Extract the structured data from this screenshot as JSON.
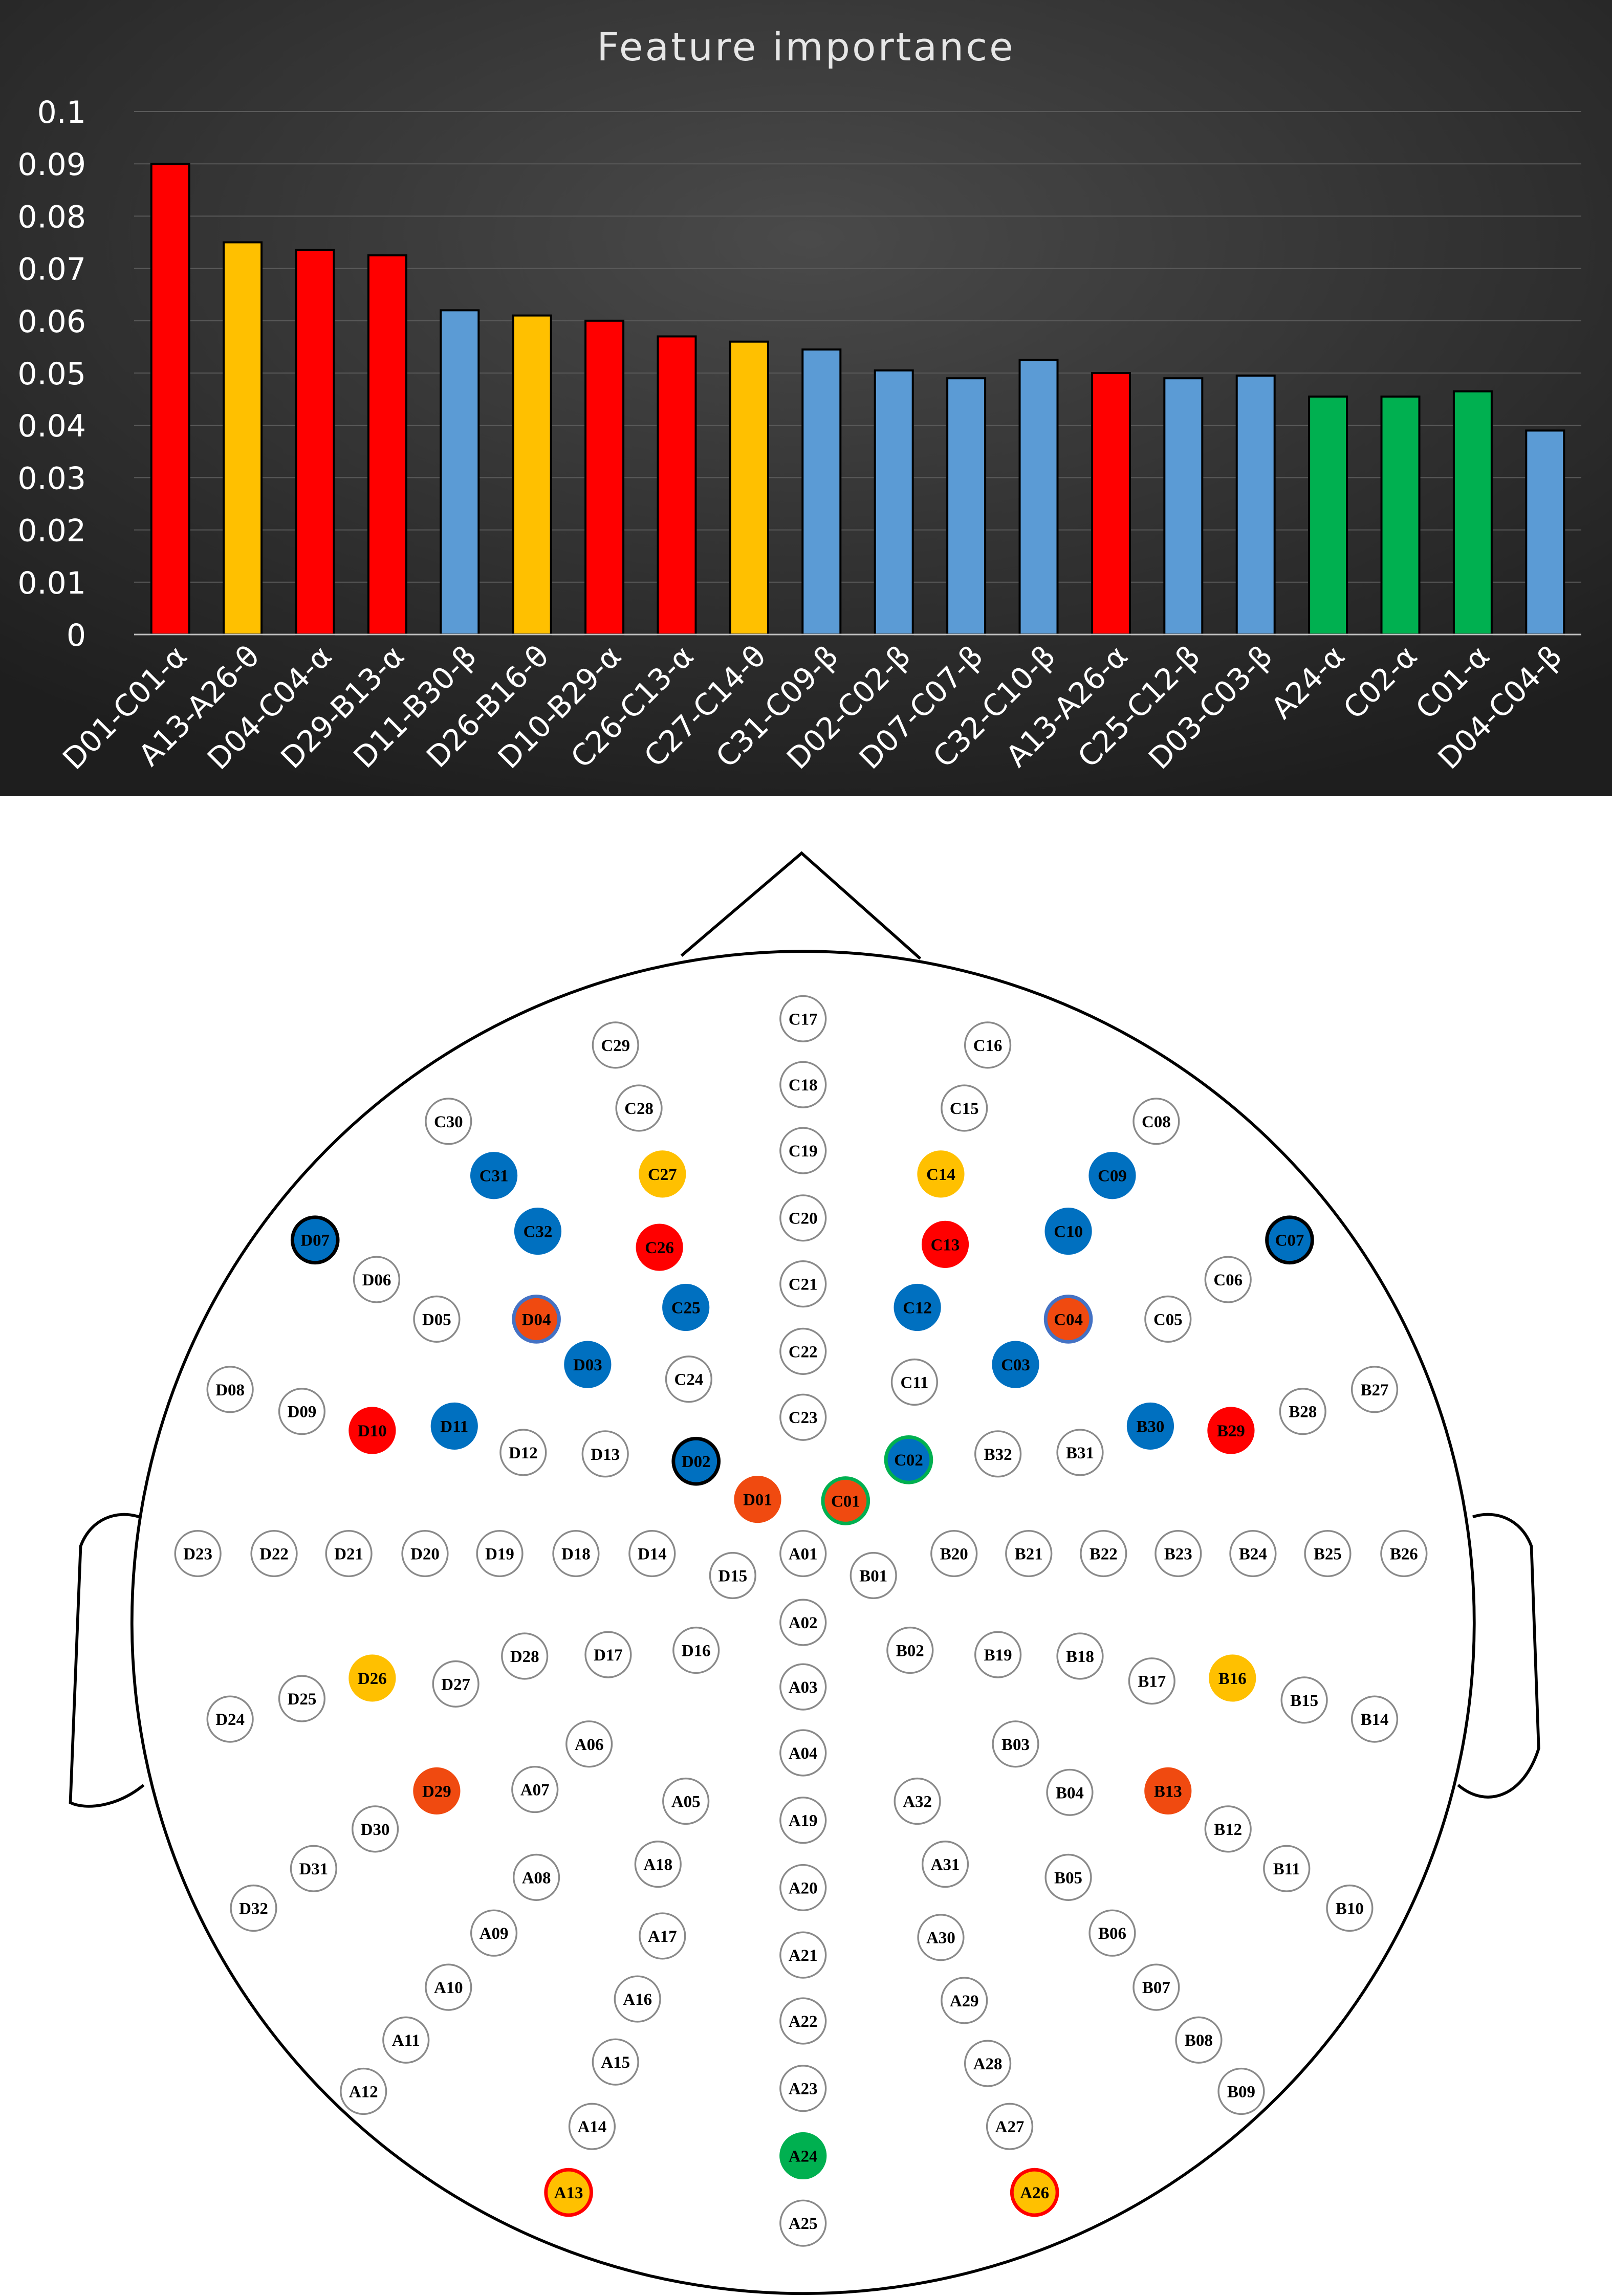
{
  "chart_data": {
    "type": "bar",
    "title": "Feature importance",
    "xlabel": "",
    "ylabel": "",
    "ylim": [
      0,
      0.1
    ],
    "yticks": [
      "0",
      "0.01",
      "0.02",
      "0.03",
      "0.04",
      "0.05",
      "0.06",
      "0.07",
      "0.08",
      "0.09",
      "0.1"
    ],
    "grid": true,
    "legend": "none",
    "categories": [
      "D01-C01-α",
      "A13-A26-θ",
      "D04-C04-α",
      "D29-B13-α",
      "D11-B30-β",
      "D26-B16-θ",
      "D10-B29-α",
      "C26-C13-α",
      "C27-C14-θ",
      "C31-C09-β",
      "D02-C02-β",
      "D07-C07-β",
      "C32-C10-β",
      "A13-A26-α",
      "C25-C12-β",
      "D03-C03-β",
      "A24-α",
      "C02-α",
      "C01-α",
      "D04-C04-β"
    ],
    "values": [
      0.09,
      0.075,
      0.0735,
      0.0725,
      0.062,
      0.061,
      0.06,
      0.057,
      0.056,
      0.0545,
      0.0505,
      0.049,
      0.0525,
      0.05,
      0.049,
      0.0495,
      0.0455,
      0.0455,
      0.0465,
      0.039
    ],
    "bar_colors": [
      "#ff0000",
      "#ffc000",
      "#ff0000",
      "#ff0000",
      "#5b9bd5",
      "#ffc000",
      "#ff0000",
      "#ff0000",
      "#ffc000",
      "#5b9bd5",
      "#5b9bd5",
      "#5b9bd5",
      "#5b9bd5",
      "#ff0000",
      "#5b9bd5",
      "#5b9bd5",
      "#00b050",
      "#00b050",
      "#00b050",
      "#5b9bd5"
    ],
    "background": [
      "#1e1e1e",
      "#4a4a4a"
    ]
  },
  "electrode_colors": {
    "white": "#ffffff",
    "red": "#ff0000",
    "orange_red": "#f04a10",
    "orange": "#ffc000",
    "blue": "#0070c0",
    "green": "#00b050"
  },
  "electrodes": [
    {
      "id": "C17",
      "x": 548,
      "y": 695,
      "c": "white"
    },
    {
      "id": "C18",
      "x": 548,
      "y": 740,
      "c": "white"
    },
    {
      "id": "C19",
      "x": 548,
      "y": 785,
      "c": "white"
    },
    {
      "id": "C20",
      "x": 548,
      "y": 831,
      "c": "white"
    },
    {
      "id": "C21",
      "x": 548,
      "y": 876,
      "c": "white"
    },
    {
      "id": "C22",
      "x": 548,
      "y": 922,
      "c": "white"
    },
    {
      "id": "C23",
      "x": 548,
      "y": 967,
      "c": "white"
    },
    {
      "id": "C29",
      "x": 420,
      "y": 713,
      "c": "white"
    },
    {
      "id": "C16",
      "x": 674,
      "y": 713,
      "c": "white"
    },
    {
      "id": "C30",
      "x": 306,
      "y": 765,
      "c": "white"
    },
    {
      "id": "C28",
      "x": 436,
      "y": 756,
      "c": "white"
    },
    {
      "id": "C15",
      "x": 658,
      "y": 756,
      "c": "white"
    },
    {
      "id": "C08",
      "x": 789,
      "y": 765,
      "c": "white"
    },
    {
      "id": "C31",
      "x": 337,
      "y": 802,
      "c": "blue"
    },
    {
      "id": "C27",
      "x": 452,
      "y": 801,
      "c": "orange"
    },
    {
      "id": "C14",
      "x": 642,
      "y": 801,
      "c": "orange"
    },
    {
      "id": "C09",
      "x": 759,
      "y": 802,
      "c": "blue"
    },
    {
      "id": "D07",
      "x": 215,
      "y": 846,
      "c": "blue"
    },
    {
      "id": "C32",
      "x": 367,
      "y": 840,
      "c": "blue"
    },
    {
      "id": "C26",
      "x": 450,
      "y": 851,
      "c": "red"
    },
    {
      "id": "C13",
      "x": 645,
      "y": 849,
      "c": "red"
    },
    {
      "id": "C10",
      "x": 729,
      "y": 840,
      "c": "blue"
    },
    {
      "id": "C07",
      "x": 880,
      "y": 846,
      "c": "blue"
    },
    {
      "id": "D06",
      "x": 257,
      "y": 873,
      "c": "white"
    },
    {
      "id": "C06",
      "x": 838,
      "y": 873,
      "c": "white"
    },
    {
      "id": "D05",
      "x": 298,
      "y": 900,
      "c": "white"
    },
    {
      "id": "D04",
      "x": 366,
      "y": 900,
      "c": "orange_red"
    },
    {
      "id": "C25",
      "x": 468,
      "y": 892,
      "c": "blue"
    },
    {
      "id": "C12",
      "x": 626,
      "y": 892,
      "c": "blue"
    },
    {
      "id": "C04",
      "x": 729,
      "y": 900,
      "c": "orange_red"
    },
    {
      "id": "C05",
      "x": 797,
      "y": 900,
      "c": "white"
    },
    {
      "id": "D03",
      "x": 401,
      "y": 931,
      "c": "blue"
    },
    {
      "id": "C24",
      "x": 470,
      "y": 941,
      "c": "white"
    },
    {
      "id": "C11",
      "x": 624,
      "y": 943,
      "c": "white"
    },
    {
      "id": "C03",
      "x": 693,
      "y": 931,
      "c": "blue"
    },
    {
      "id": "D08",
      "x": 157,
      "y": 948,
      "c": "white"
    },
    {
      "id": "B27",
      "x": 938,
      "y": 948,
      "c": "white"
    },
    {
      "id": "D09",
      "x": 206,
      "y": 963,
      "c": "white"
    },
    {
      "id": "B28",
      "x": 889,
      "y": 963,
      "c": "white"
    },
    {
      "id": "D10",
      "x": 254,
      "y": 976,
      "c": "red"
    },
    {
      "id": "D11",
      "x": 310,
      "y": 973,
      "c": "blue"
    },
    {
      "id": "B30",
      "x": 785,
      "y": 973,
      "c": "blue"
    },
    {
      "id": "B29",
      "x": 840,
      "y": 976,
      "c": "red"
    },
    {
      "id": "D12",
      "x": 357,
      "y": 991,
      "c": "white"
    },
    {
      "id": "D13",
      "x": 413,
      "y": 992,
      "c": "white"
    },
    {
      "id": "D02",
      "x": 475,
      "y": 997,
      "c": "blue"
    },
    {
      "id": "C02",
      "x": 620,
      "y": 996,
      "c": "blue"
    },
    {
      "id": "B32",
      "x": 681,
      "y": 992,
      "c": "white"
    },
    {
      "id": "B31",
      "x": 737,
      "y": 991,
      "c": "white"
    },
    {
      "id": "D01",
      "x": 517,
      "y": 1023,
      "c": "orange_red"
    },
    {
      "id": "C01",
      "x": 577,
      "y": 1024,
      "c": "orange_red"
    },
    {
      "id": "D23",
      "x": 135,
      "y": 1060,
      "c": "white"
    },
    {
      "id": "D22",
      "x": 187,
      "y": 1060,
      "c": "white"
    },
    {
      "id": "D21",
      "x": 238,
      "y": 1060,
      "c": "white"
    },
    {
      "id": "D20",
      "x": 290,
      "y": 1060,
      "c": "white"
    },
    {
      "id": "D19",
      "x": 341,
      "y": 1060,
      "c": "white"
    },
    {
      "id": "D18",
      "x": 393,
      "y": 1060,
      "c": "white"
    },
    {
      "id": "D14",
      "x": 445,
      "y": 1060,
      "c": "white"
    },
    {
      "id": "D15",
      "x": 500,
      "y": 1075,
      "c": "white"
    },
    {
      "id": "A01",
      "x": 548,
      "y": 1060,
      "c": "white"
    },
    {
      "id": "B01",
      "x": 596,
      "y": 1075,
      "c": "white"
    },
    {
      "id": "B20",
      "x": 651,
      "y": 1060,
      "c": "white"
    },
    {
      "id": "B21",
      "x": 702,
      "y": 1060,
      "c": "white"
    },
    {
      "id": "B22",
      "x": 753,
      "y": 1060,
      "c": "white"
    },
    {
      "id": "B23",
      "x": 804,
      "y": 1060,
      "c": "white"
    },
    {
      "id": "B24",
      "x": 855,
      "y": 1060,
      "c": "white"
    },
    {
      "id": "B25",
      "x": 906,
      "y": 1060,
      "c": "white"
    },
    {
      "id": "B26",
      "x": 958,
      "y": 1060,
      "c": "white"
    },
    {
      "id": "A02",
      "x": 548,
      "y": 1107,
      "c": "white"
    },
    {
      "id": "D16",
      "x": 475,
      "y": 1126,
      "c": "white"
    },
    {
      "id": "B02",
      "x": 621,
      "y": 1126,
      "c": "white"
    },
    {
      "id": "D28",
      "x": 358,
      "y": 1130,
      "c": "white"
    },
    {
      "id": "D17",
      "x": 415,
      "y": 1129,
      "c": "white"
    },
    {
      "id": "B19",
      "x": 681,
      "y": 1129,
      "c": "white"
    },
    {
      "id": "B18",
      "x": 737,
      "y": 1130,
      "c": "white"
    },
    {
      "id": "D26",
      "x": 254,
      "y": 1145,
      "c": "orange"
    },
    {
      "id": "B16",
      "x": 841,
      "y": 1145,
      "c": "orange"
    },
    {
      "id": "D27",
      "x": 311,
      "y": 1149,
      "c": "white"
    },
    {
      "id": "B17",
      "x": 786,
      "y": 1147,
      "c": "white"
    },
    {
      "id": "A03",
      "x": 548,
      "y": 1151,
      "c": "white"
    },
    {
      "id": "D25",
      "x": 206,
      "y": 1159,
      "c": "white"
    },
    {
      "id": "B15",
      "x": 890,
      "y": 1160,
      "c": "white"
    },
    {
      "id": "D24",
      "x": 157,
      "y": 1173,
      "c": "white"
    },
    {
      "id": "B14",
      "x": 938,
      "y": 1173,
      "c": "white"
    },
    {
      "id": "A06",
      "x": 402,
      "y": 1190,
      "c": "white"
    },
    {
      "id": "B03",
      "x": 693,
      "y": 1190,
      "c": "white"
    },
    {
      "id": "A04",
      "x": 548,
      "y": 1196,
      "c": "white"
    },
    {
      "id": "D29",
      "x": 298,
      "y": 1222,
      "c": "orange_red"
    },
    {
      "id": "A07",
      "x": 365,
      "y": 1221,
      "c": "white"
    },
    {
      "id": "B04",
      "x": 730,
      "y": 1223,
      "c": "white"
    },
    {
      "id": "B13",
      "x": 797,
      "y": 1222,
      "c": "orange_red"
    },
    {
      "id": "A05",
      "x": 468,
      "y": 1229,
      "c": "white"
    },
    {
      "id": "A32",
      "x": 626,
      "y": 1229,
      "c": "white"
    },
    {
      "id": "A19",
      "x": 548,
      "y": 1242,
      "c": "white"
    },
    {
      "id": "D30",
      "x": 256,
      "y": 1248,
      "c": "white"
    },
    {
      "id": "B12",
      "x": 838,
      "y": 1248,
      "c": "white"
    },
    {
      "id": "D31",
      "x": 214,
      "y": 1275,
      "c": "white"
    },
    {
      "id": "B11",
      "x": 878,
      "y": 1275,
      "c": "white"
    },
    {
      "id": "A18",
      "x": 449,
      "y": 1272,
      "c": "white"
    },
    {
      "id": "A31",
      "x": 645,
      "y": 1272,
      "c": "white"
    },
    {
      "id": "A08",
      "x": 366,
      "y": 1281,
      "c": "white"
    },
    {
      "id": "B05",
      "x": 729,
      "y": 1281,
      "c": "white"
    },
    {
      "id": "A20",
      "x": 548,
      "y": 1288,
      "c": "white"
    },
    {
      "id": "D32",
      "x": 173,
      "y": 1302,
      "c": "white"
    },
    {
      "id": "B10",
      "x": 921,
      "y": 1302,
      "c": "white"
    },
    {
      "id": "A09",
      "x": 337,
      "y": 1319,
      "c": "white"
    },
    {
      "id": "B06",
      "x": 759,
      "y": 1319,
      "c": "white"
    },
    {
      "id": "A17",
      "x": 452,
      "y": 1321,
      "c": "white"
    },
    {
      "id": "A30",
      "x": 642,
      "y": 1322,
      "c": "white"
    },
    {
      "id": "A21",
      "x": 548,
      "y": 1334,
      "c": "white"
    },
    {
      "id": "A10",
      "x": 306,
      "y": 1356,
      "c": "white"
    },
    {
      "id": "B07",
      "x": 789,
      "y": 1356,
      "c": "white"
    },
    {
      "id": "A16",
      "x": 435,
      "y": 1364,
      "c": "white"
    },
    {
      "id": "A29",
      "x": 658,
      "y": 1365,
      "c": "white"
    },
    {
      "id": "A22",
      "x": 548,
      "y": 1379,
      "c": "white"
    },
    {
      "id": "A11",
      "x": 277,
      "y": 1392,
      "c": "white"
    },
    {
      "id": "B08",
      "x": 818,
      "y": 1392,
      "c": "white"
    },
    {
      "id": "A15",
      "x": 420,
      "y": 1407,
      "c": "white"
    },
    {
      "id": "A28",
      "x": 674,
      "y": 1408,
      "c": "white"
    },
    {
      "id": "A12",
      "x": 248,
      "y": 1427,
      "c": "white"
    },
    {
      "id": "B09",
      "x": 847,
      "y": 1427,
      "c": "white"
    },
    {
      "id": "A23",
      "x": 548,
      "y": 1425,
      "c": "white"
    },
    {
      "id": "A14",
      "x": 404,
      "y": 1451,
      "c": "white"
    },
    {
      "id": "A27",
      "x": 689,
      "y": 1451,
      "c": "white"
    },
    {
      "id": "A24",
      "x": 548,
      "y": 1471,
      "c": "green"
    },
    {
      "id": "A13",
      "x": 388,
      "y": 1496,
      "c": "orange"
    },
    {
      "id": "A26",
      "x": 706,
      "y": 1496,
      "c": "orange"
    },
    {
      "id": "A25",
      "x": 548,
      "y": 1517,
      "c": "white"
    }
  ],
  "electrode_rings": {
    "D04": "#4472c4",
    "C04": "#4472c4",
    "C01": "#00b050",
    "C02": "#00b050",
    "D02": "#000000",
    "D07": "#000000",
    "C07": "#000000",
    "A13": "#ff0000",
    "A26": "#ff0000"
  }
}
